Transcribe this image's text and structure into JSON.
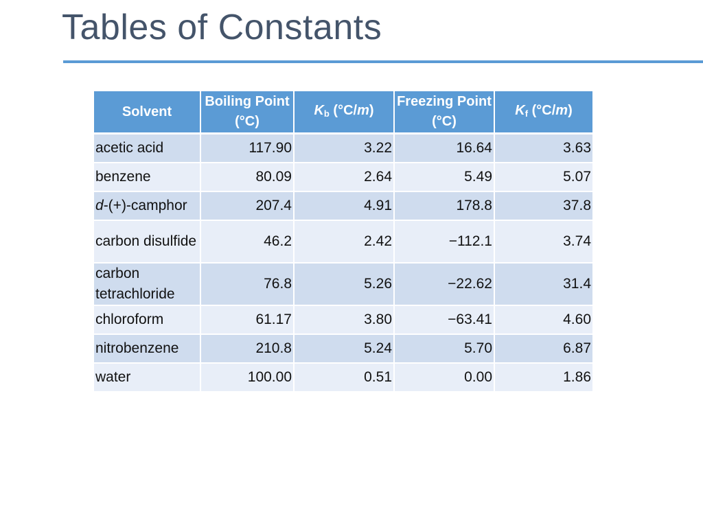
{
  "slide": {
    "title": "Tables of Constants"
  },
  "table": {
    "headers": {
      "solvent": "Solvent",
      "boiling_point": "Boiling Point (°C)",
      "kb_symbol": "K",
      "kb_sub": "b",
      "kb_unit_open": " (°C/",
      "kb_unit_m": "m",
      "kb_unit_close": ")",
      "freezing_point": "Freezing Point (°C)",
      "kf_symbol": "K",
      "kf_sub": "f",
      "kf_unit_open": " (°C/",
      "kf_unit_m": "m",
      "kf_unit_close": ")"
    },
    "rows": [
      {
        "solvent_prefix": "",
        "solvent": "acetic acid",
        "boiling_point": "117.90",
        "kb": "3.22",
        "freezing_point": "16.64",
        "kf": "3.63"
      },
      {
        "solvent_prefix": "",
        "solvent": "benzene",
        "boiling_point": "80.09",
        "kb": "2.64",
        "freezing_point": "5.49",
        "kf": "5.07"
      },
      {
        "solvent_prefix": "d",
        "solvent": "-(+)-camphor",
        "boiling_point": "207.4",
        "kb": "4.91",
        "freezing_point": "178.8",
        "kf": "37.8"
      },
      {
        "solvent_prefix": "",
        "solvent": "carbon disulfide",
        "boiling_point": "46.2",
        "kb": "2.42",
        "freezing_point": "−112.1",
        "kf": "3.74"
      },
      {
        "solvent_prefix": "",
        "solvent": "carbon tetrachloride",
        "boiling_point": "76.8",
        "kb": "5.26",
        "freezing_point": "−22.62",
        "kf": "31.4"
      },
      {
        "solvent_prefix": "",
        "solvent": "chloroform",
        "boiling_point": "61.17",
        "kb": "3.80",
        "freezing_point": "−63.41",
        "kf": "4.60"
      },
      {
        "solvent_prefix": "",
        "solvent": "nitrobenzene",
        "boiling_point": "210.8",
        "kb": "5.24",
        "freezing_point": "5.70",
        "kf": "6.87"
      },
      {
        "solvent_prefix": "",
        "solvent": "water",
        "boiling_point": "100.00",
        "kb": "0.51",
        "freezing_point": "0.00",
        "kf": "1.86"
      }
    ]
  },
  "colors": {
    "title": "#44546a",
    "accent": "#5b9bd5",
    "row_dark": "#cfdcee",
    "row_light": "#e8eef8"
  }
}
